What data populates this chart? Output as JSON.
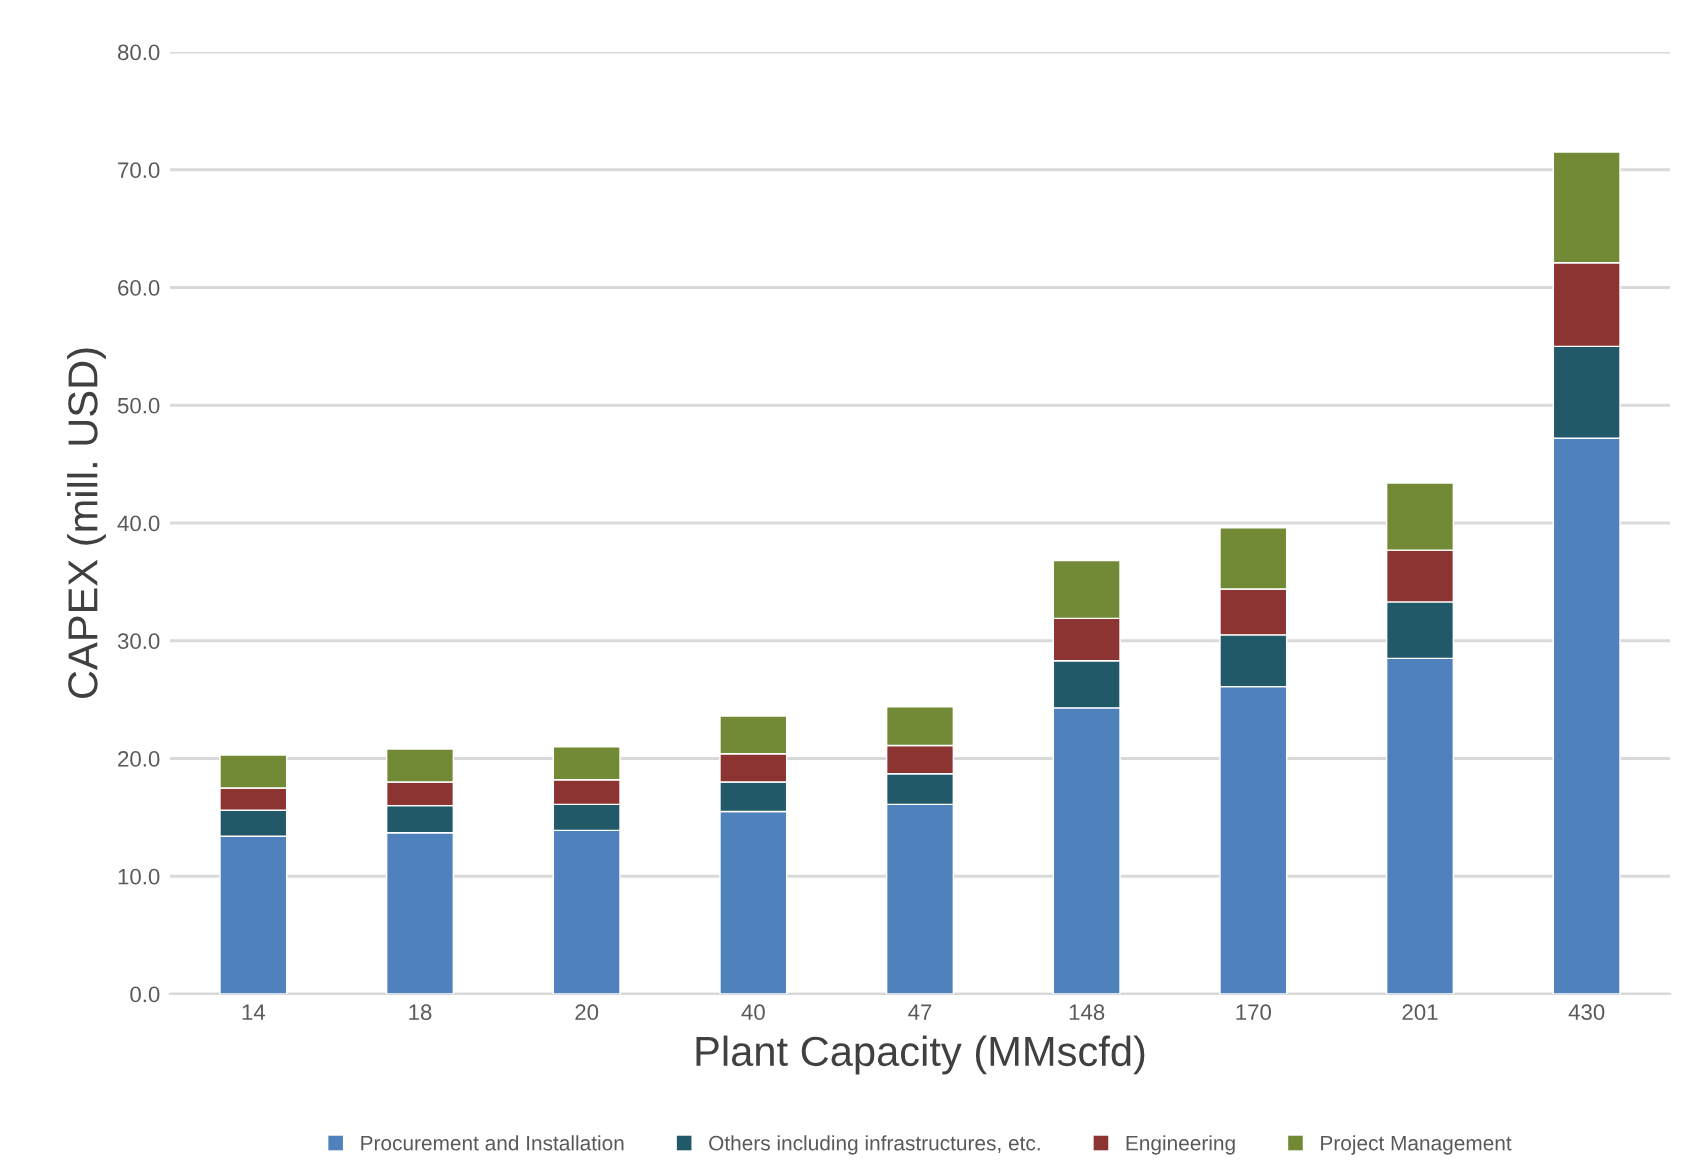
{
  "chart_data": {
    "type": "bar",
    "stacked": true,
    "xlabel": "Plant Capacity (MMscfd)",
    "ylabel": "CAPEX (mill. USD)",
    "categories": [
      "14",
      "18",
      "20",
      "40",
      "47",
      "148",
      "170",
      "201",
      "430"
    ],
    "series": [
      {
        "name": "Procurement and Installation",
        "color": "#4f81bd",
        "values": [
          13.4,
          13.7,
          13.9,
          15.5,
          16.1,
          24.3,
          26.1,
          28.5,
          47.2
        ]
      },
      {
        "name": "Others including infrastructures, etc.",
        "color": "#215968",
        "values": [
          2.2,
          2.3,
          2.2,
          2.5,
          2.6,
          4.0,
          4.4,
          4.8,
          7.8
        ]
      },
      {
        "name": "Engineering",
        "color": "#8b3432",
        "values": [
          1.9,
          2.0,
          2.1,
          2.4,
          2.4,
          3.6,
          3.9,
          4.4,
          7.1
        ]
      },
      {
        "name": "Project Management",
        "color": "#728a36",
        "values": [
          2.8,
          2.8,
          2.8,
          3.2,
          3.3,
          4.9,
          5.2,
          5.7,
          9.4
        ]
      }
    ],
    "ylim": [
      0,
      80
    ],
    "yticks": [
      {
        "value": 0,
        "label": "0.0"
      },
      {
        "value": 10,
        "label": "10.0"
      },
      {
        "value": 20,
        "label": "20.0"
      },
      {
        "value": 30,
        "label": "30.0"
      },
      {
        "value": 40,
        "label": "40.0"
      },
      {
        "value": 50,
        "label": "50.0"
      },
      {
        "value": 60,
        "label": "60.0"
      },
      {
        "value": 70,
        "label": "70.0"
      },
      {
        "value": 80,
        "label": "80.0"
      }
    ],
    "grid": "y",
    "legend": "bottom"
  }
}
